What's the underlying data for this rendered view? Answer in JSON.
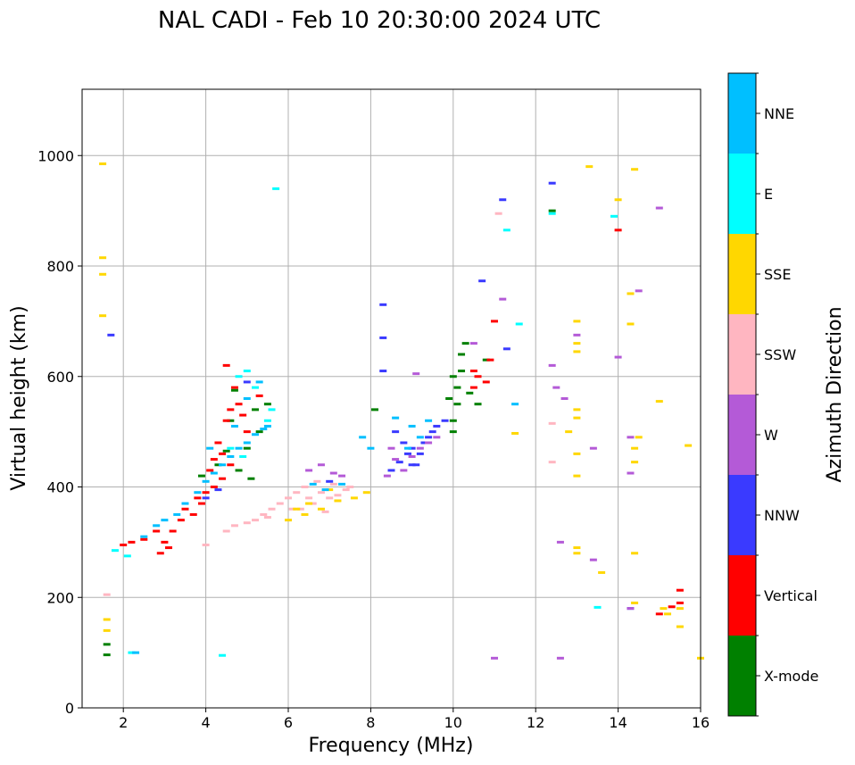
{
  "chart_data": {
    "type": "scatter",
    "title": "NAL CADI - Feb 10 20:30:00 2024 UTC",
    "xlabel": "Frequency (MHz)",
    "ylabel": "Virtual height (km)",
    "xlim": [
      1,
      16
    ],
    "ylim": [
      0,
      1120
    ],
    "xticks": [
      2,
      4,
      6,
      8,
      10,
      12,
      14,
      16
    ],
    "yticks": [
      0,
      200,
      400,
      600,
      800,
      1000
    ],
    "grid": true,
    "colorbar": {
      "title": "Azimuth Direction",
      "categories": [
        {
          "label": "X-mode",
          "color": "#008000"
        },
        {
          "label": "Vertical",
          "color": "#ff0000"
        },
        {
          "label": "NNW",
          "color": "#3a3aff"
        },
        {
          "label": "W",
          "color": "#b45ad7"
        },
        {
          "label": "SSW",
          "color": "#ffb6c1"
        },
        {
          "label": "SSE",
          "color": "#ffd700"
        },
        {
          "label": "E",
          "color": "#00ffff"
        },
        {
          "label": "NNE",
          "color": "#00bfff"
        }
      ]
    },
    "series": [
      {
        "name": "X-mode",
        "points": [
          [
            1.6,
            96
          ],
          [
            1.6,
            115
          ],
          [
            4.5,
            465
          ],
          [
            4.6,
            520
          ],
          [
            4.8,
            430
          ],
          [
            5.0,
            470
          ],
          [
            5.2,
            540
          ],
          [
            5.3,
            500
          ],
          [
            5.5,
            550
          ],
          [
            4.3,
            440
          ],
          [
            3.9,
            420
          ],
          [
            4.7,
            575
          ],
          [
            5.1,
            415
          ],
          [
            10.0,
            500
          ],
          [
            10.0,
            520
          ],
          [
            10.1,
            550
          ],
          [
            10.1,
            580
          ],
          [
            10.2,
            610
          ],
          [
            10.2,
            640
          ],
          [
            10.3,
            660
          ],
          [
            9.9,
            560
          ],
          [
            10.0,
            600
          ],
          [
            10.4,
            570
          ],
          [
            10.6,
            550
          ],
          [
            10.8,
            630
          ],
          [
            8.1,
            540
          ],
          [
            12.4,
            900
          ]
        ]
      },
      {
        "name": "Vertical",
        "points": [
          [
            2.0,
            295
          ],
          [
            2.2,
            300
          ],
          [
            2.5,
            305
          ],
          [
            2.8,
            320
          ],
          [
            3.0,
            300
          ],
          [
            3.2,
            320
          ],
          [
            3.4,
            340
          ],
          [
            3.5,
            360
          ],
          [
            3.7,
            350
          ],
          [
            3.8,
            380
          ],
          [
            4.0,
            390
          ],
          [
            4.1,
            430
          ],
          [
            4.2,
            450
          ],
          [
            4.3,
            480
          ],
          [
            4.4,
            460
          ],
          [
            4.5,
            520
          ],
          [
            4.6,
            540
          ],
          [
            4.7,
            580
          ],
          [
            4.8,
            550
          ],
          [
            4.9,
            530
          ],
          [
            5.0,
            500
          ],
          [
            4.2,
            400
          ],
          [
            3.9,
            370
          ],
          [
            4.4,
            415
          ],
          [
            4.6,
            440
          ],
          [
            5.3,
            565
          ],
          [
            4.5,
            620
          ],
          [
            10.5,
            580
          ],
          [
            10.6,
            600
          ],
          [
            10.8,
            590
          ],
          [
            10.9,
            630
          ],
          [
            11.0,
            700
          ],
          [
            10.5,
            610
          ],
          [
            14.0,
            865
          ],
          [
            15.0,
            170
          ],
          [
            15.3,
            183
          ],
          [
            15.5,
            190
          ],
          [
            15.5,
            213
          ],
          [
            2.9,
            280
          ],
          [
            3.1,
            290
          ]
        ]
      },
      {
        "name": "NNW",
        "points": [
          [
            8.5,
            430
          ],
          [
            8.7,
            445
          ],
          [
            8.9,
            460
          ],
          [
            9.0,
            470
          ],
          [
            9.1,
            440
          ],
          [
            9.3,
            480
          ],
          [
            9.4,
            490
          ],
          [
            9.6,
            510
          ],
          [
            9.8,
            520
          ],
          [
            8.6,
            500
          ],
          [
            8.8,
            480
          ],
          [
            9.2,
            460
          ],
          [
            8.3,
            730
          ],
          [
            8.3,
            670
          ],
          [
            8.3,
            610
          ],
          [
            9.0,
            440
          ],
          [
            9.5,
            500
          ],
          [
            11.2,
            920
          ],
          [
            11.3,
            650
          ],
          [
            12.4,
            950
          ],
          [
            14.3,
            180
          ],
          [
            10.7,
            773
          ],
          [
            4.0,
            380
          ],
          [
            4.3,
            395
          ],
          [
            5.0,
            590
          ],
          [
            7.0,
            410
          ],
          [
            1.7,
            675
          ]
        ]
      },
      {
        "name": "W",
        "points": [
          [
            8.4,
            420
          ],
          [
            8.6,
            450
          ],
          [
            8.8,
            430
          ],
          [
            9.0,
            455
          ],
          [
            9.2,
            470
          ],
          [
            9.4,
            480
          ],
          [
            9.6,
            490
          ],
          [
            8.5,
            470
          ],
          [
            9.1,
            605
          ],
          [
            10.5,
            660
          ],
          [
            11.2,
            740
          ],
          [
            12.4,
            620
          ],
          [
            12.5,
            580
          ],
          [
            12.7,
            560
          ],
          [
            13.0,
            675
          ],
          [
            13.4,
            470
          ],
          [
            14.0,
            635
          ],
          [
            14.5,
            755
          ],
          [
            14.3,
            425
          ],
          [
            14.3,
            490
          ],
          [
            15.0,
            905
          ],
          [
            12.6,
            300
          ],
          [
            13.4,
            268
          ],
          [
            12.6,
            90
          ],
          [
            11.0,
            90
          ],
          [
            6.5,
            430
          ],
          [
            6.8,
            440
          ],
          [
            7.1,
            425
          ],
          [
            7.3,
            420
          ],
          [
            14.3,
            180
          ]
        ]
      },
      {
        "name": "SSW",
        "points": [
          [
            4.5,
            320
          ],
          [
            4.7,
            330
          ],
          [
            5.0,
            335
          ],
          [
            5.2,
            340
          ],
          [
            5.4,
            350
          ],
          [
            5.6,
            360
          ],
          [
            5.8,
            370
          ],
          [
            6.0,
            380
          ],
          [
            6.2,
            390
          ],
          [
            6.4,
            400
          ],
          [
            6.5,
            380
          ],
          [
            6.6,
            370
          ],
          [
            6.8,
            390
          ],
          [
            7.0,
            380
          ],
          [
            7.2,
            385
          ],
          [
            6.3,
            360
          ],
          [
            6.7,
            410
          ],
          [
            6.9,
            355
          ],
          [
            7.1,
            405
          ],
          [
            7.4,
            395
          ],
          [
            7.5,
            400
          ],
          [
            6.1,
            360
          ],
          [
            5.5,
            345
          ],
          [
            11.1,
            895
          ],
          [
            12.4,
            445
          ],
          [
            12.4,
            515
          ],
          [
            1.6,
            205
          ],
          [
            4.0,
            295
          ]
        ]
      },
      {
        "name": "SSE",
        "points": [
          [
            1.5,
            985
          ],
          [
            1.5,
            815
          ],
          [
            1.5,
            785
          ],
          [
            1.5,
            710
          ],
          [
            1.6,
            140
          ],
          [
            1.6,
            160
          ],
          [
            6.0,
            340
          ],
          [
            6.2,
            360
          ],
          [
            6.5,
            370
          ],
          [
            6.8,
            360
          ],
          [
            7.2,
            375
          ],
          [
            7.6,
            380
          ],
          [
            7.9,
            390
          ],
          [
            7.0,
            395
          ],
          [
            6.4,
            350
          ],
          [
            13.0,
            700
          ],
          [
            13.0,
            660
          ],
          [
            13.0,
            645
          ],
          [
            13.0,
            540
          ],
          [
            13.0,
            525
          ],
          [
            13.0,
            460
          ],
          [
            13.0,
            420
          ],
          [
            13.0,
            290
          ],
          [
            13.0,
            280
          ],
          [
            13.3,
            980
          ],
          [
            13.6,
            245
          ],
          [
            14.0,
            920
          ],
          [
            14.4,
            975
          ],
          [
            14.3,
            750
          ],
          [
            14.3,
            695
          ],
          [
            14.5,
            490
          ],
          [
            14.4,
            470
          ],
          [
            14.4,
            445
          ],
          [
            14.4,
            280
          ],
          [
            14.4,
            190
          ],
          [
            15.0,
            555
          ],
          [
            15.1,
            180
          ],
          [
            15.2,
            170
          ],
          [
            15.5,
            180
          ],
          [
            15.5,
            147
          ],
          [
            15.7,
            475
          ],
          [
            16.0,
            90
          ],
          [
            12.8,
            500
          ],
          [
            11.5,
            497
          ]
        ]
      },
      {
        "name": "E",
        "points": [
          [
            1.8,
            285
          ],
          [
            2.2,
            100
          ],
          [
            4.4,
            95
          ],
          [
            5.7,
            940
          ],
          [
            5.0,
            610
          ],
          [
            5.2,
            580
          ],
          [
            4.8,
            600
          ],
          [
            4.6,
            470
          ],
          [
            4.9,
            455
          ],
          [
            5.5,
            520
          ],
          [
            5.6,
            540
          ],
          [
            11.3,
            865
          ],
          [
            11.6,
            695
          ],
          [
            12.4,
            895
          ],
          [
            13.9,
            890
          ],
          [
            13.5,
            182
          ],
          [
            2.1,
            275
          ]
        ]
      },
      {
        "name": "NNE",
        "points": [
          [
            2.5,
            310
          ],
          [
            2.8,
            330
          ],
          [
            3.0,
            340
          ],
          [
            3.3,
            350
          ],
          [
            3.5,
            370
          ],
          [
            3.8,
            390
          ],
          [
            4.0,
            410
          ],
          [
            4.2,
            425
          ],
          [
            4.4,
            440
          ],
          [
            4.6,
            455
          ],
          [
            4.8,
            470
          ],
          [
            5.0,
            480
          ],
          [
            5.2,
            495
          ],
          [
            5.4,
            505
          ],
          [
            4.7,
            510
          ],
          [
            5.0,
            560
          ],
          [
            5.3,
            590
          ],
          [
            5.5,
            510
          ],
          [
            4.1,
            470
          ],
          [
            8.6,
            525
          ],
          [
            9.0,
            510
          ],
          [
            9.4,
            520
          ],
          [
            8.9,
            470
          ],
          [
            9.2,
            490
          ],
          [
            6.6,
            405
          ],
          [
            6.9,
            395
          ],
          [
            7.3,
            405
          ],
          [
            7.8,
            490
          ],
          [
            8.0,
            470
          ],
          [
            11.5,
            550
          ],
          [
            2.3,
            100
          ]
        ]
      }
    ]
  }
}
